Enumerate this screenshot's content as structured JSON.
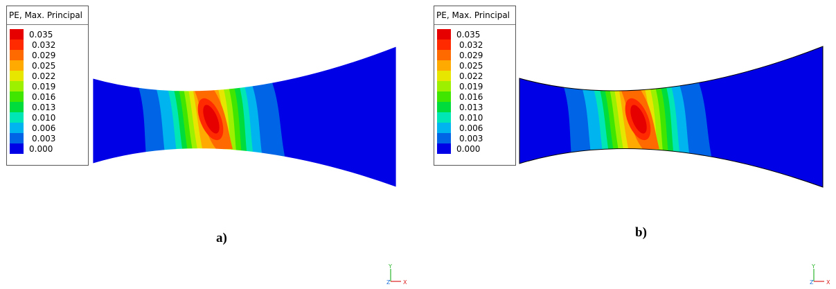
{
  "panels": [
    {
      "id": "a",
      "legend_title": "PE, Max. Principal",
      "caption": "a)",
      "triad": {
        "y": "Y",
        "z": "Z",
        "x": "X"
      }
    },
    {
      "id": "b",
      "legend_title": "PE, Max. Principal",
      "caption": "b)",
      "triad": {
        "y": "Y",
        "z": "Z",
        "x": "X"
      }
    }
  ],
  "legend_levels": [
    {
      "value": "0.035",
      "color": "#e60000"
    },
    {
      "value": "0.032",
      "color": "#ff2a00"
    },
    {
      "value": "0.029",
      "color": "#ff6a00"
    },
    {
      "value": "0.025",
      "color": "#ffaa00"
    },
    {
      "value": "0.022",
      "color": "#e6e600"
    },
    {
      "value": "0.019",
      "color": "#9df000"
    },
    {
      "value": "0.016",
      "color": "#40e600"
    },
    {
      "value": "0.013",
      "color": "#00dc3c"
    },
    {
      "value": "0.010",
      "color": "#00e6b4"
    },
    {
      "value": "0.006",
      "color": "#00b4f0"
    },
    {
      "value": "0.003",
      "color": "#0064e6"
    },
    {
      "value": "0.000",
      "color": "#0000e6"
    }
  ]
}
